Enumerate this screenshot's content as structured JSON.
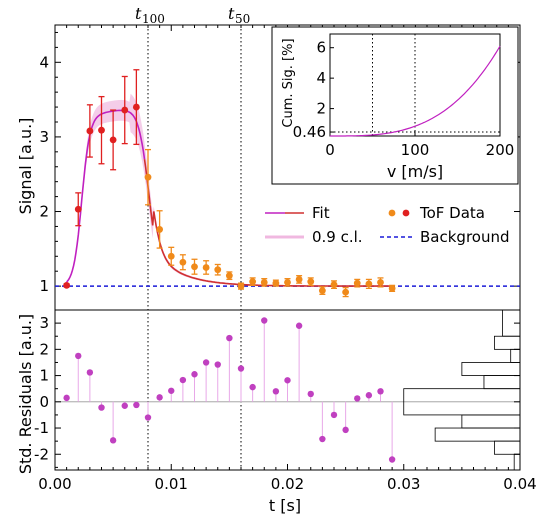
{
  "chart_data": [
    {
      "type": "scatter",
      "ylabel": "Signal [a.u.]",
      "ylim": [
        0.68,
        4.5
      ],
      "xlim": [
        0.0,
        0.04
      ],
      "yticks": [
        "1",
        "2",
        "3",
        "4"
      ],
      "vlines": [
        {
          "x": 0.008,
          "label": "t",
          "sub": "100"
        },
        {
          "x": 0.016,
          "label": "t",
          "sub": "50"
        }
      ],
      "background": 1.0,
      "legend": {
        "fit": "Fit",
        "ci": "0.9 c.l.",
        "tof": "ToF Data",
        "bg": "Background"
      },
      "colors": {
        "fit": "#c020c0",
        "fit2": "#d03030",
        "ci": "#f0b8e0",
        "red": "#e02020",
        "orange": "#f08a1a",
        "bg": "#1a1ad8"
      },
      "red_points": [
        {
          "x": 0.001,
          "y": 1.01,
          "e": 0.02
        },
        {
          "x": 0.002,
          "y": 2.03,
          "e": 0.22
        },
        {
          "x": 0.003,
          "y": 3.08,
          "e": 0.35
        },
        {
          "x": 0.004,
          "y": 3.09,
          "e": 0.45
        },
        {
          "x": 0.005,
          "y": 2.96,
          "e": 0.4
        },
        {
          "x": 0.006,
          "y": 3.36,
          "e": 0.45
        },
        {
          "x": 0.007,
          "y": 3.4,
          "e": 0.5
        }
      ],
      "orange_points": [
        {
          "x": 0.008,
          "y": 2.46,
          "e": 0.37
        },
        {
          "x": 0.009,
          "y": 1.76,
          "e": 0.25
        },
        {
          "x": 0.01,
          "y": 1.4,
          "e": 0.12
        },
        {
          "x": 0.011,
          "y": 1.32,
          "e": 0.1
        },
        {
          "x": 0.012,
          "y": 1.26,
          "e": 0.1
        },
        {
          "x": 0.013,
          "y": 1.25,
          "e": 0.09
        },
        {
          "x": 0.014,
          "y": 1.22,
          "e": 0.07
        },
        {
          "x": 0.015,
          "y": 1.14,
          "e": 0.05
        },
        {
          "x": 0.016,
          "y": 1.0,
          "e": 0.04
        },
        {
          "x": 0.017,
          "y": 1.06,
          "e": 0.05
        },
        {
          "x": 0.018,
          "y": 1.05,
          "e": 0.05
        },
        {
          "x": 0.019,
          "y": 1.04,
          "e": 0.04
        },
        {
          "x": 0.02,
          "y": 1.05,
          "e": 0.05
        },
        {
          "x": 0.021,
          "y": 1.09,
          "e": 0.05
        },
        {
          "x": 0.022,
          "y": 1.06,
          "e": 0.05
        },
        {
          "x": 0.023,
          "y": 0.94,
          "e": 0.05
        },
        {
          "x": 0.024,
          "y": 1.02,
          "e": 0.05
        },
        {
          "x": 0.025,
          "y": 0.92,
          "e": 0.06
        },
        {
          "x": 0.026,
          "y": 1.04,
          "e": 0.05
        },
        {
          "x": 0.027,
          "y": 1.03,
          "e": 0.06
        },
        {
          "x": 0.028,
          "y": 1.05,
          "e": 0.06
        },
        {
          "x": 0.029,
          "y": 0.97,
          "e": 0.04
        }
      ]
    },
    {
      "type": "scatter",
      "xlabel": "t [s]",
      "ylabel": "Std. Residuals [a.u.]",
      "ylim": [
        -2.6,
        3.5
      ],
      "xlim": [
        0.0,
        0.04
      ],
      "xticks": [
        "0.00",
        "0.01",
        "0.02",
        "0.03",
        "0.04"
      ],
      "yticks": [
        "-2",
        "-1",
        "0",
        "1",
        "2",
        "3"
      ],
      "color": "#c040c0",
      "residuals": [
        {
          "x": 0.001,
          "y": 0.15
        },
        {
          "x": 0.002,
          "y": 1.75
        },
        {
          "x": 0.003,
          "y": 1.12
        },
        {
          "x": 0.004,
          "y": -0.22
        },
        {
          "x": 0.005,
          "y": -1.47
        },
        {
          "x": 0.006,
          "y": -0.15
        },
        {
          "x": 0.007,
          "y": -0.12
        },
        {
          "x": 0.008,
          "y": -0.6
        },
        {
          "x": 0.009,
          "y": 0.17
        },
        {
          "x": 0.01,
          "y": 0.42
        },
        {
          "x": 0.011,
          "y": 0.83
        },
        {
          "x": 0.012,
          "y": 1.05
        },
        {
          "x": 0.013,
          "y": 1.5
        },
        {
          "x": 0.014,
          "y": 1.42
        },
        {
          "x": 0.015,
          "y": 2.43
        },
        {
          "x": 0.016,
          "y": 1.27
        },
        {
          "x": 0.017,
          "y": 0.56
        },
        {
          "x": 0.018,
          "y": 3.1
        },
        {
          "x": 0.019,
          "y": 0.4
        },
        {
          "x": 0.02,
          "y": 0.82
        },
        {
          "x": 0.021,
          "y": 2.9
        },
        {
          "x": 0.022,
          "y": 0.3
        },
        {
          "x": 0.023,
          "y": -1.42
        },
        {
          "x": 0.024,
          "y": -0.5
        },
        {
          "x": 0.025,
          "y": -1.07
        },
        {
          "x": 0.026,
          "y": 0.13
        },
        {
          "x": 0.027,
          "y": 0.25
        },
        {
          "x": 0.028,
          "y": 0.4
        },
        {
          "x": 0.029,
          "y": -2.2
        }
      ],
      "histogram": [
        {
          "lo": 2.5,
          "hi": 3.5,
          "w": 0.0015
        },
        {
          "lo": 2.0,
          "hi": 2.5,
          "w": 0.0022
        },
        {
          "lo": 1.5,
          "hi": 2.0,
          "w": 0.0008
        },
        {
          "lo": 1.0,
          "hi": 1.5,
          "w": 0.005
        },
        {
          "lo": 0.5,
          "hi": 1.0,
          "w": 0.0031
        },
        {
          "lo": -0.5,
          "hi": 0.5,
          "w": 0.01
        },
        {
          "lo": -1.0,
          "hi": -0.5,
          "w": 0.005
        },
        {
          "lo": -1.5,
          "hi": -1.0,
          "w": 0.0073
        },
        {
          "lo": -2.0,
          "hi": -1.5,
          "w": 0.0022
        },
        {
          "lo": -2.6,
          "hi": -2.0,
          "w": 0.0005
        }
      ]
    },
    {
      "type": "line",
      "xlabel": "v [m/s]",
      "ylabel": "Cum. Sig. [%]",
      "xlim": [
        0,
        200
      ],
      "ylim": [
        0.2,
        6.9
      ],
      "xticks": [
        "0",
        "100",
        "200"
      ],
      "yticks": [
        "0.46",
        "2",
        "4",
        "6"
      ],
      "vlines": [
        50,
        100
      ],
      "hline": 0.46,
      "color": "#c020c0"
    }
  ]
}
